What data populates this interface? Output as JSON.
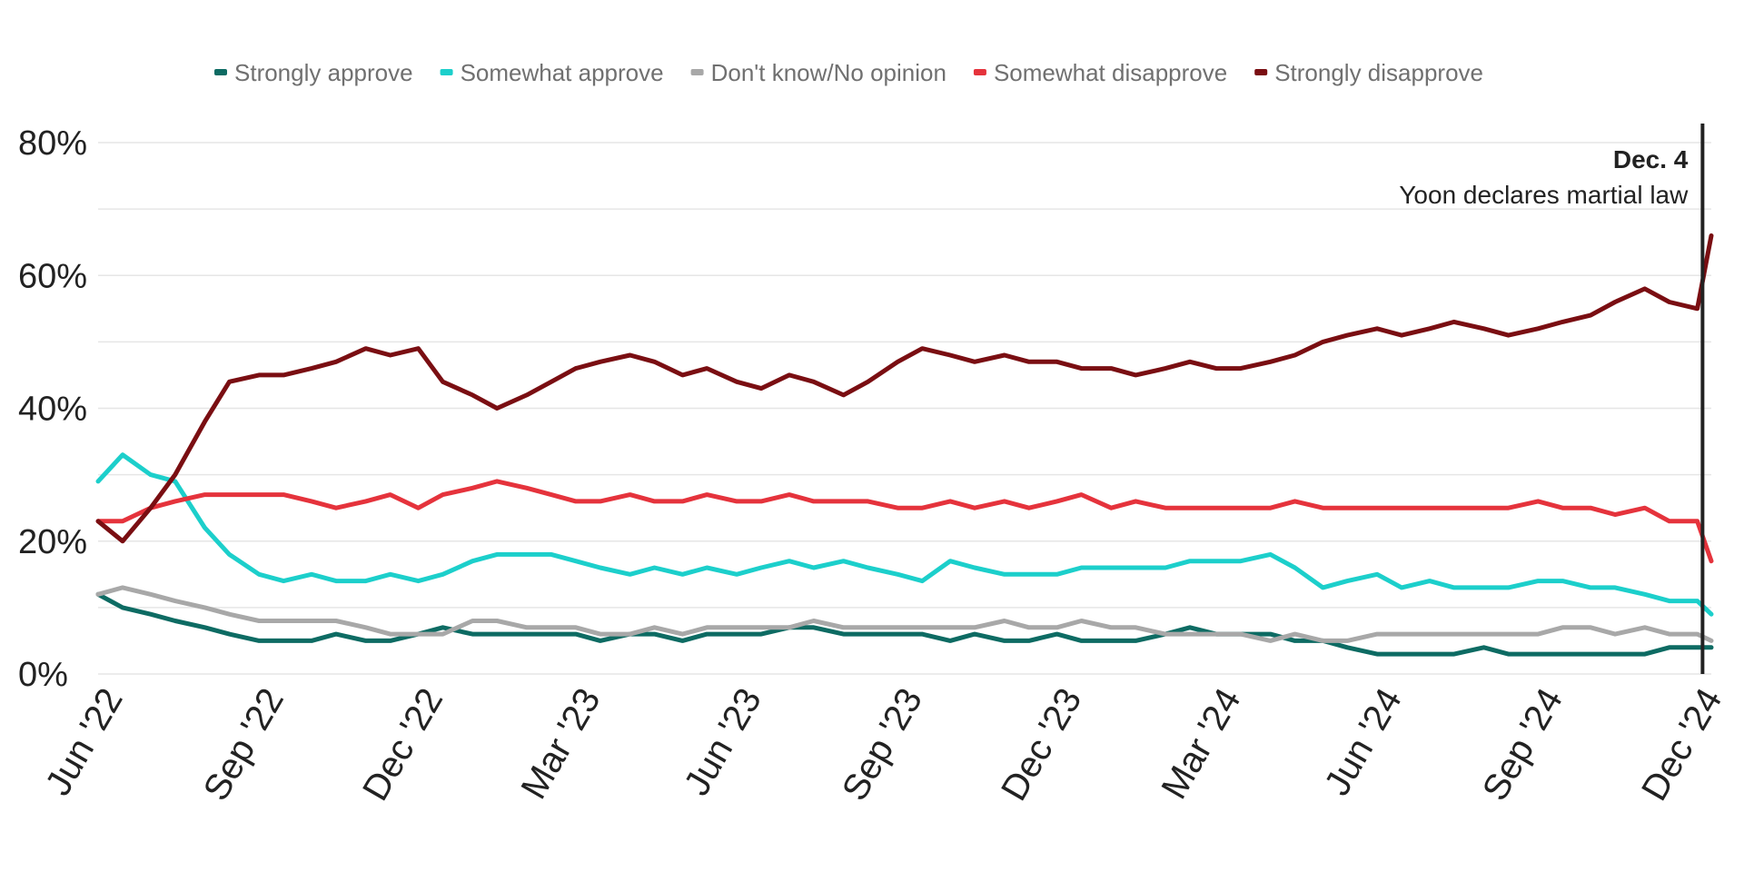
{
  "chart_data": {
    "type": "line",
    "title": "",
    "xlabel": "",
    "ylabel": "",
    "ylim": [
      0,
      80
    ],
    "y_ticks": [
      {
        "value": 0,
        "label": "0%"
      },
      {
        "value": 20,
        "label": "20%"
      },
      {
        "value": 40,
        "label": "40%"
      },
      {
        "value": 60,
        "label": "60%"
      },
      {
        "value": 80,
        "label": "80%"
      }
    ],
    "x_range": [
      "2022-06-01",
      "2024-12-09"
    ],
    "x_ticks": [
      {
        "date": "2022-06-01",
        "label": "Jun '22"
      },
      {
        "date": "2022-09-01",
        "label": "Sep '22"
      },
      {
        "date": "2022-12-01",
        "label": "Dec '22"
      },
      {
        "date": "2023-03-01",
        "label": "Mar '23"
      },
      {
        "date": "2023-06-01",
        "label": "Jun '23"
      },
      {
        "date": "2023-09-01",
        "label": "Sep '23"
      },
      {
        "date": "2023-12-01",
        "label": "Dec '23"
      },
      {
        "date": "2024-03-01",
        "label": "Mar '24"
      },
      {
        "date": "2024-06-01",
        "label": "Jun '24"
      },
      {
        "date": "2024-09-01",
        "label": "Sep '24"
      },
      {
        "date": "2024-12-01",
        "label": "Dec '24"
      }
    ],
    "grid": true,
    "legend_position": "top",
    "annotation": {
      "date": "2024-12-04",
      "label_date": "Dec. 4",
      "label_text": "Yoon declares martial law"
    },
    "x": [
      "2022-06-01",
      "2022-06-15",
      "2022-07-01",
      "2022-07-15",
      "2022-08-01",
      "2022-08-15",
      "2022-09-01",
      "2022-09-15",
      "2022-10-01",
      "2022-10-15",
      "2022-11-01",
      "2022-11-15",
      "2022-12-01",
      "2022-12-15",
      "2023-01-01",
      "2023-01-15",
      "2023-02-01",
      "2023-02-15",
      "2023-03-01",
      "2023-03-15",
      "2023-04-01",
      "2023-04-15",
      "2023-05-01",
      "2023-05-15",
      "2023-06-01",
      "2023-06-15",
      "2023-07-01",
      "2023-07-15",
      "2023-08-01",
      "2023-08-15",
      "2023-09-01",
      "2023-09-15",
      "2023-10-01",
      "2023-10-15",
      "2023-11-01",
      "2023-11-15",
      "2023-12-01",
      "2023-12-15",
      "2024-01-01",
      "2024-01-15",
      "2024-02-01",
      "2024-02-15",
      "2024-03-01",
      "2024-03-15",
      "2024-04-01",
      "2024-04-15",
      "2024-05-01",
      "2024-05-15",
      "2024-06-01",
      "2024-06-15",
      "2024-07-01",
      "2024-07-15",
      "2024-08-01",
      "2024-08-15",
      "2024-09-01",
      "2024-09-15",
      "2024-10-01",
      "2024-10-15",
      "2024-11-01",
      "2024-11-15",
      "2024-12-01",
      "2024-12-09"
    ],
    "series": [
      {
        "name": "Strongly approve",
        "color": "#0d6b63",
        "values": [
          12,
          10,
          9,
          8,
          7,
          6,
          5,
          5,
          5,
          6,
          5,
          5,
          6,
          7,
          6,
          6,
          6,
          6,
          6,
          5,
          6,
          6,
          5,
          6,
          6,
          6,
          7,
          7,
          6,
          6,
          6,
          6,
          5,
          6,
          5,
          5,
          6,
          5,
          5,
          5,
          6,
          7,
          6,
          6,
          6,
          5,
          5,
          4,
          3,
          3,
          3,
          3,
          4,
          3,
          3,
          3,
          3,
          3,
          3,
          4,
          4,
          4
        ]
      },
      {
        "name": "Somewhat approve",
        "color": "#1ccfcb",
        "values": [
          29,
          33,
          30,
          29,
          22,
          18,
          15,
          14,
          15,
          14,
          14,
          15,
          14,
          15,
          17,
          18,
          18,
          18,
          17,
          16,
          15,
          16,
          15,
          16,
          15,
          16,
          17,
          16,
          17,
          16,
          15,
          14,
          17,
          16,
          15,
          15,
          15,
          16,
          16,
          16,
          16,
          17,
          17,
          17,
          18,
          16,
          13,
          14,
          15,
          13,
          14,
          13,
          13,
          13,
          14,
          14,
          13,
          13,
          12,
          11,
          11,
          9
        ]
      },
      {
        "name": "Don't know/No opinion",
        "color": "#a8a8a8",
        "values": [
          12,
          13,
          12,
          11,
          10,
          9,
          8,
          8,
          8,
          8,
          7,
          6,
          6,
          6,
          8,
          8,
          7,
          7,
          7,
          6,
          6,
          7,
          6,
          7,
          7,
          7,
          7,
          8,
          7,
          7,
          7,
          7,
          7,
          7,
          8,
          7,
          7,
          8,
          7,
          7,
          6,
          6,
          6,
          6,
          5,
          6,
          5,
          5,
          6,
          6,
          6,
          6,
          6,
          6,
          6,
          7,
          7,
          6,
          7,
          6,
          6,
          5
        ]
      },
      {
        "name": "Somewhat disapprove",
        "color": "#e5333c",
        "values": [
          23,
          23,
          25,
          26,
          27,
          27,
          27,
          27,
          26,
          25,
          26,
          27,
          25,
          27,
          28,
          29,
          28,
          27,
          26,
          26,
          27,
          26,
          26,
          27,
          26,
          26,
          27,
          26,
          26,
          26,
          25,
          25,
          26,
          25,
          26,
          25,
          26,
          27,
          25,
          26,
          25,
          25,
          25,
          25,
          25,
          26,
          25,
          25,
          25,
          25,
          25,
          25,
          25,
          25,
          26,
          25,
          25,
          24,
          25,
          23,
          23,
          17
        ]
      },
      {
        "name": "Strongly disapprove",
        "color": "#7a0e12",
        "values": [
          23,
          20,
          25,
          30,
          38,
          44,
          45,
          45,
          46,
          47,
          49,
          48,
          49,
          44,
          42,
          40,
          42,
          44,
          46,
          47,
          48,
          47,
          45,
          46,
          44,
          43,
          45,
          44,
          42,
          44,
          47,
          49,
          48,
          47,
          48,
          47,
          47,
          46,
          46,
          45,
          46,
          47,
          46,
          46,
          47,
          48,
          50,
          51,
          52,
          51,
          52,
          53,
          52,
          51,
          52,
          53,
          54,
          56,
          58,
          56,
          55,
          66
        ]
      }
    ]
  }
}
